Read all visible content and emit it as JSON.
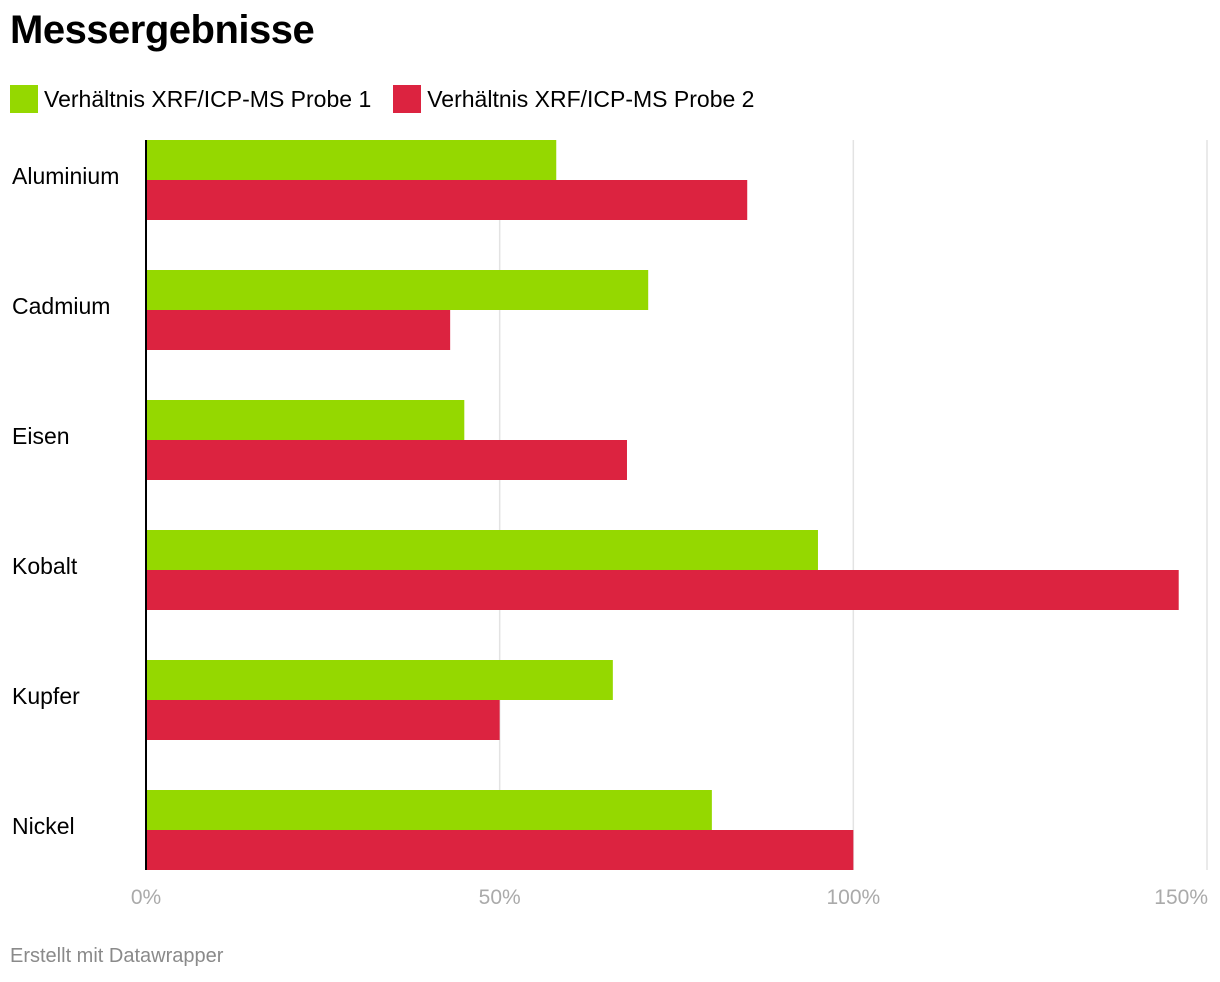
{
  "title": "Messergebnisse",
  "footer": "Erstellt mit Datawrapper",
  "chart_data": {
    "type": "bar",
    "orientation": "horizontal",
    "title": "Messergebnisse",
    "categories": [
      "Aluminium",
      "Cadmium",
      "Eisen",
      "Kobalt",
      "Kupfer",
      "Nickel"
    ],
    "series": [
      {
        "name": "Verhältnis XRF/ICP-MS Probe 1",
        "color": "#95d800",
        "values": [
          58,
          71,
          45,
          95,
          66,
          80
        ]
      },
      {
        "name": "Verhältnis XRF/ICP-MS Probe 2",
        "color": "#dc2340",
        "values": [
          85,
          43,
          68,
          146,
          50,
          100
        ]
      }
    ],
    "xlim": [
      0,
      150
    ],
    "xticks": [
      0,
      50,
      100,
      150
    ],
    "xtick_labels": [
      "0%",
      "50%",
      "100%",
      "150%"
    ],
    "unit": "%",
    "grid": true,
    "legend_position": "top-left"
  }
}
